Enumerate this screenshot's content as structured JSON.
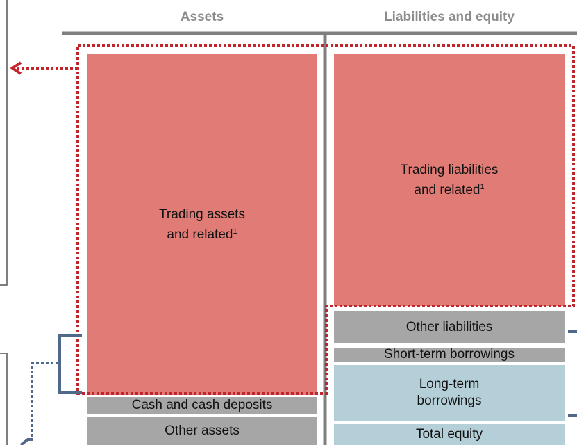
{
  "header": {
    "columns": [
      "Assets",
      "Liabilities and equity"
    ]
  },
  "assets": [
    {
      "lines": [
        "Trading assets",
        "and related"
      ],
      "footnote": "1"
    },
    {
      "lines": [
        "Cash and cash deposits"
      ]
    },
    {
      "lines": [
        "Other assets"
      ]
    }
  ],
  "liabilities": [
    {
      "lines": [
        "Trading liabilities",
        "and related"
      ],
      "footnote": "1"
    },
    {
      "lines": [
        "Other liabilities"
      ]
    },
    {
      "lines": [
        "Short-term borrowings"
      ]
    },
    {
      "lines": [
        "Long-term",
        "borrowings"
      ]
    },
    {
      "lines": [
        "Total equity"
      ]
    }
  ]
}
